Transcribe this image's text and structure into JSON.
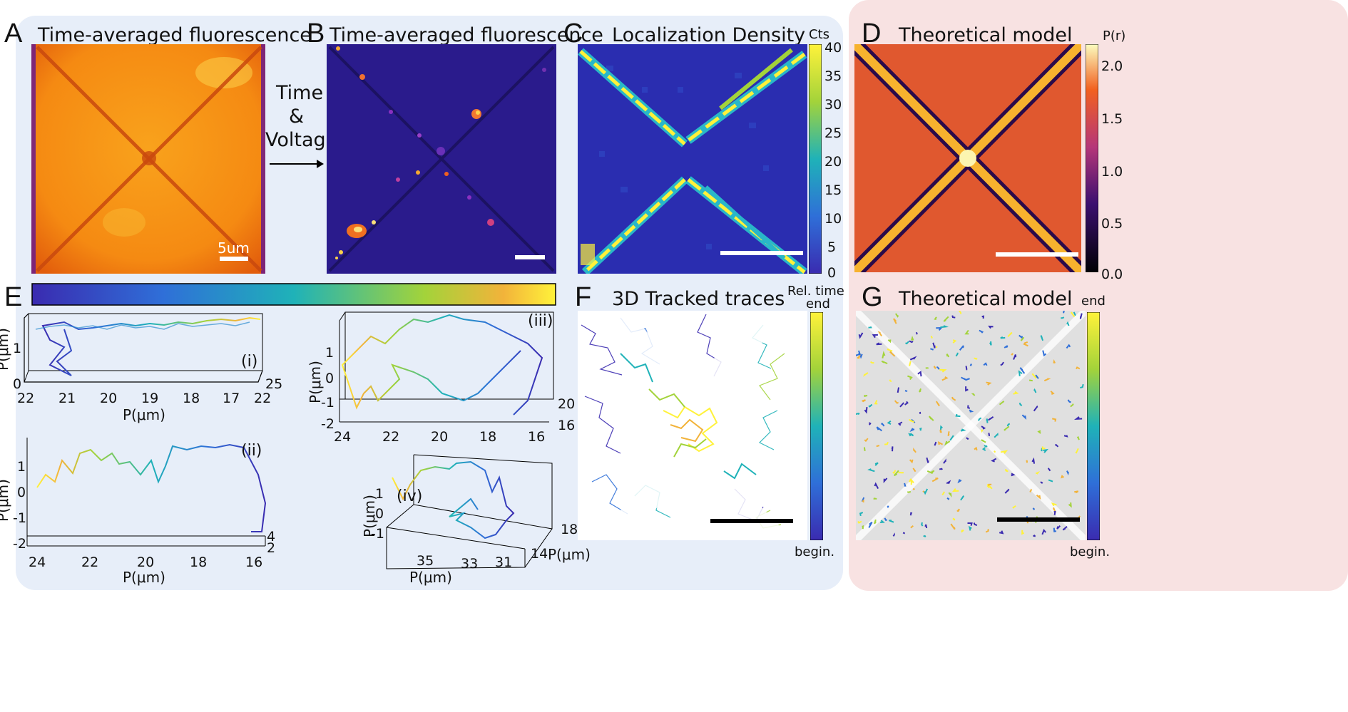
{
  "colors": {
    "left_bg": "#e7eef9",
    "right_bg": "#f8e2e2",
    "inferno_dark": "#170b3a",
    "plasma_dark": "#2a1b8c",
    "model_orange": "#e0582f"
  },
  "panels": {
    "A": {
      "letter": "A",
      "title": "Time-averaged fluorescence",
      "scale_label": "5um"
    },
    "B": {
      "letter": "B",
      "title": "Time-averaged fluorescence",
      "arrow_label": [
        "Time",
        "&",
        "Voltage"
      ]
    },
    "C": {
      "letter": "C",
      "title": "Localization Density",
      "cbar_title": "Cts",
      "cbar_ticks": [
        "40",
        "35",
        "30",
        "25",
        "20",
        "15",
        "10",
        "5",
        "0"
      ]
    },
    "D": {
      "letter": "D",
      "title": "Theoretical model",
      "cbar_title": "P(r)",
      "cbar_ticks": [
        "2.0",
        "1.5",
        "1.0",
        "0.5",
        "0.0"
      ]
    },
    "E": {
      "letter": "E",
      "i": {
        "tag": "(i)",
        "zticks": [
          "1",
          "0"
        ],
        "xticks": [
          "22",
          "21",
          "20",
          "19",
          "18",
          "17",
          "22"
        ],
        "depth_tick": "25",
        "ylabel": "P(μm)",
        "xlabel": "P(μm)"
      },
      "ii": {
        "tag": "(ii)",
        "yticks": [
          "1",
          "0",
          "-1",
          "-2"
        ],
        "xticks": [
          "24",
          "22",
          "20",
          "18",
          "16"
        ],
        "depth_ticks": [
          "4",
          "2"
        ],
        "ylabel": "P(μm)",
        "xlabel": "P(μm)"
      },
      "iii": {
        "tag": "(iii)",
        "yticks": [
          "1",
          "0",
          "-1",
          "-2"
        ],
        "xticks": [
          "24",
          "22",
          "20",
          "18",
          "16"
        ],
        "depth_ticks": [
          "20",
          "16"
        ],
        "ylabel": "P(μm)"
      },
      "iv": {
        "tag": "(iv)",
        "yticks": [
          "1",
          "0",
          "-1"
        ],
        "xticks": [
          "35",
          "33",
          "31"
        ],
        "depth_ticks": [
          "18",
          "14"
        ],
        "ylabel": "P(μm)",
        "xlabel": "P(μm)",
        "zlabel": "P(μm)"
      }
    },
    "F": {
      "letter": "F",
      "title": "3D Tracked traces",
      "cbar_title": [
        "Rel. time",
        "end"
      ],
      "cbar_bottom": "begin."
    },
    "G": {
      "letter": "G",
      "title": "Theoretical model",
      "cbar_title": "end",
      "cbar_bottom": "begin."
    }
  }
}
